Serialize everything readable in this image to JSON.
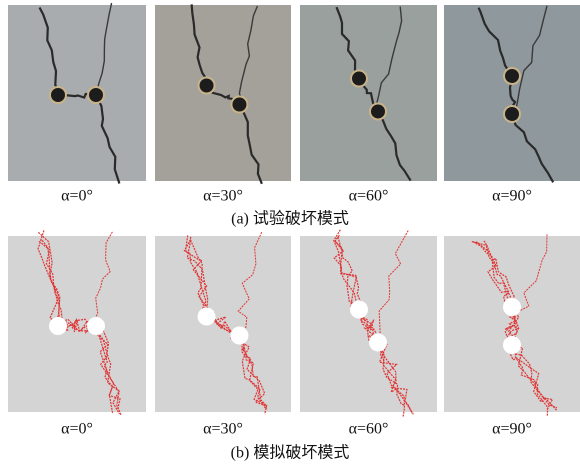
{
  "experimental": {
    "labels": [
      "α=0°",
      "α=30°",
      "α=60°",
      "α=90°"
    ],
    "caption": "(a) 试验破坏模式"
  },
  "simulation": {
    "labels": [
      "α=0°",
      "α=30°",
      "α=60°",
      "α=90°"
    ],
    "caption": "(b) 模拟破坏模式"
  }
}
